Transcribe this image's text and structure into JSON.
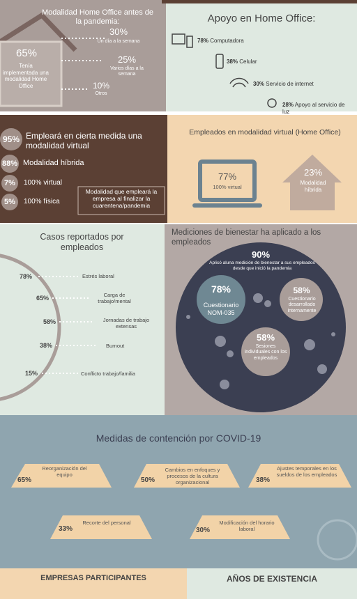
{
  "home_office_before": {
    "title": "Modalidad Home Office antes de la pandemia:",
    "main": {
      "value": "65%",
      "label": "Tenía implementada una modalidad Home Office"
    },
    "items": [
      {
        "value": "30%",
        "label": "Un día a la semana"
      },
      {
        "value": "25%",
        "label": "Varios días a la semana"
      },
      {
        "value": "10%",
        "label": "Otros"
      }
    ]
  },
  "support": {
    "title": "Apoyo en Home Office:",
    "items": [
      {
        "value": "78%",
        "label": "Computadora"
      },
      {
        "value": "38%",
        "label": "Celular"
      },
      {
        "value": "30%",
        "label": "Servicio de internet"
      },
      {
        "value": "28%",
        "label": "Apoyo al servicio de luz"
      }
    ]
  },
  "after_pandemic": {
    "items": [
      {
        "value": "95%",
        "label": "Empleará en cierta medida una modalidad virtual"
      },
      {
        "value": "88%",
        "label": "Modalidad híbrida"
      },
      {
        "value": "7%",
        "label": "100% virtual"
      },
      {
        "value": "5%",
        "label": "100% física"
      }
    ],
    "note": "Modalidad que empleará la empresa al finalizar la cuarentena/pandemia"
  },
  "virtual_employees": {
    "title": "Empleados en modalidad virtual (Home Office)",
    "items": [
      {
        "value": "77%",
        "label": "100% virtual"
      },
      {
        "value": "23%",
        "label": "Modalidad híbrida"
      }
    ]
  },
  "reported_cases": {
    "title": "Casos reportados por empleados",
    "items": [
      {
        "value": "78%",
        "label": "Estrés laboral"
      },
      {
        "value": "65%",
        "label": "Carga de trabajo/mental"
      },
      {
        "value": "58%",
        "label": "Jornadas de trabajo extensas"
      },
      {
        "value": "38%",
        "label": "Burnout"
      },
      {
        "value": "15%",
        "label": "Conflicto trabajo/familia"
      }
    ]
  },
  "wellbeing": {
    "title": "Mediciones de bienestar ha aplicado a los empleados",
    "main": {
      "value": "90%",
      "label": "Aplicó aluna medición de bienestar a sus empleados desde que inició la pandemia"
    },
    "items": [
      {
        "value": "78%",
        "label": "Cuestionario NOM-035"
      },
      {
        "value": "58%",
        "label": "Cuestionario desarrollado internamente"
      },
      {
        "value": "58%",
        "label": "Sesiones individuales con los empleados"
      }
    ]
  },
  "covid_measures": {
    "title": "Medidas de contención por COVID-19",
    "items": [
      {
        "value": "65%",
        "label": "Reorganización del equipo"
      },
      {
        "value": "50%",
        "label": "Cambios en enfoques y procesos de la cultura organizacional"
      },
      {
        "value": "38%",
        "label": "Ajustes temporales en los sueldos de los empleados"
      },
      {
        "value": "33%",
        "label": "Recorte del personal"
      },
      {
        "value": "30%",
        "label": "Modificación del horario laboral"
      }
    ]
  },
  "footer": {
    "left": "EMPRESAS PARTICIPANTES",
    "right": "AÑOS DE EXISTENCIA"
  }
}
